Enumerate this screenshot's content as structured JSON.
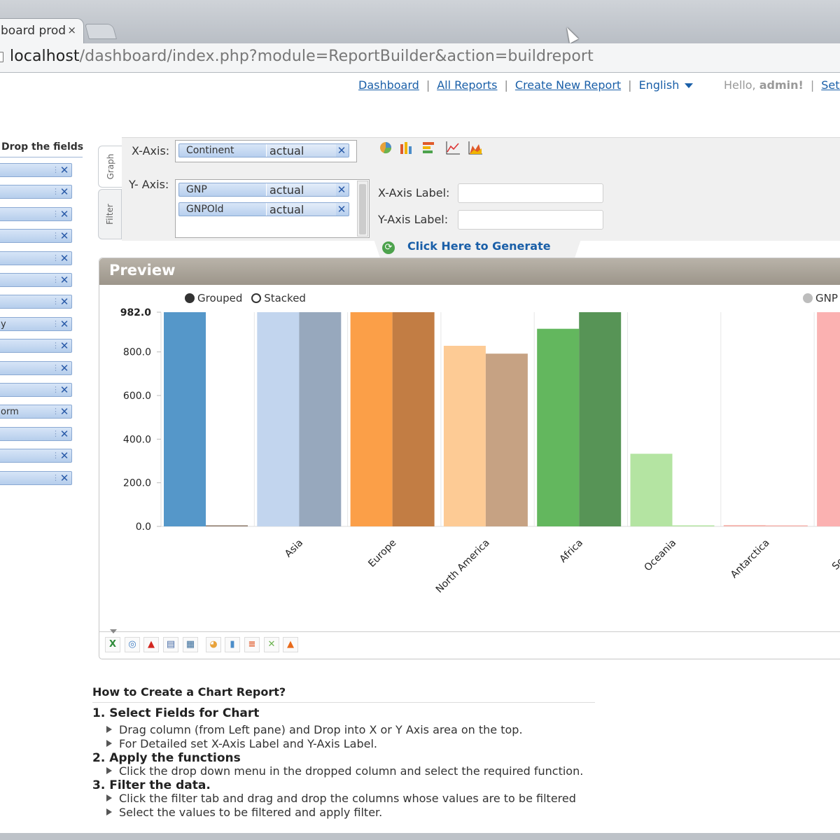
{
  "browser": {
    "tab_title": "board prod",
    "tab_close": "×",
    "url_host": "localhost",
    "url_path": "/dashboard/index.php?module=ReportBuilder&action=buildreport"
  },
  "nav": {
    "links": [
      "Dashboard",
      "All Reports",
      "Create New Report"
    ],
    "separator": "|",
    "language": "English",
    "hello_prefix": "Hello,",
    "user": "admin!",
    "settings": "Sett"
  },
  "fields_pane": {
    "title": "Drop the fields",
    "items": [
      "",
      "",
      "",
      "",
      "",
      "",
      "",
      "y",
      "",
      "",
      "",
      "orm",
      "",
      "",
      ""
    ],
    "remove_glyph": "✕"
  },
  "vertical_tabs": [
    "Graph",
    "Filter"
  ],
  "axes": {
    "x_label": "X-Axis:",
    "y_label": "Y- Axis:",
    "x_fields": [
      {
        "name": "Continent",
        "function": "actual"
      }
    ],
    "y_fields": [
      {
        "name": "GNP",
        "function": "actual"
      },
      {
        "name": "GNPOld",
        "function": "actual"
      }
    ],
    "remove_glyph": "✕"
  },
  "labels": {
    "x_axis_label": "X-Axis Label:",
    "y_axis_label": "Y-Axis Label:",
    "x_axis_value": "",
    "y_axis_value": ""
  },
  "chart_type_icons": [
    "pie-chart-icon",
    "column-chart-icon",
    "bar-chart-icon",
    "line-chart-icon",
    "area-chart-icon"
  ],
  "generate": {
    "label": "Click Here to Generate",
    "icon": "refresh-icon"
  },
  "preview": {
    "title": "Preview",
    "mode_grouped": "Grouped",
    "mode_stacked": "Stacked",
    "selected_mode": "Grouped",
    "legend_partial": "GNP"
  },
  "chart_data": {
    "type": "bar",
    "categories": [
      "",
      "Asia",
      "Europe",
      "North America",
      "Africa",
      "Oceania",
      "Antarctica",
      "South A"
    ],
    "series": [
      {
        "name": "",
        "values": [
          982,
          982,
          982,
          828,
          906,
          333,
          6,
          982
        ]
      },
      {
        "name": "",
        "values": [
          4,
          982,
          982,
          792,
          982,
          0,
          0,
          null
        ]
      }
    ],
    "colors": [
      [
        "#5597c9",
        "#8c7868"
      ],
      [
        "#c2d5ee",
        "#97a8bd"
      ],
      [
        "#fb9f48",
        "#c27d44"
      ],
      [
        "#fdcb95",
        "#c6a283"
      ],
      [
        "#63b75e",
        "#579456"
      ],
      [
        "#b4e4a2",
        "#b4e4a2"
      ],
      [
        "#f6b4ae",
        "#f6b4ae"
      ],
      [
        "#fbb1b1",
        "#fbb1b1"
      ]
    ],
    "y_ticks": [
      "982.0",
      "800.0",
      "600.0",
      "400.0",
      "200.0",
      "0.0"
    ],
    "y_tick_values": [
      982,
      800,
      600,
      400,
      200,
      0
    ],
    "ylim": [
      0,
      982
    ],
    "grid": true
  },
  "export_tools": [
    "excel-icon",
    "web-icon",
    "pdf-icon",
    "print-icon",
    "image-icon",
    "pie-chart-icon",
    "column-chart-icon",
    "bar-chart-icon",
    "line-chart-icon",
    "area-chart-icon"
  ],
  "help": {
    "title": "How to Create a Chart Report?",
    "sections": [
      {
        "heading": "1. Select Fields for Chart",
        "bullets": [
          "Drag column (from Left pane) and Drop into X or Y Axis area on the top.",
          "For Detailed set X-Axis Label and Y-Axis Label."
        ]
      },
      {
        "heading": "2. Apply the functions",
        "bullets": [
          "Click the drop down menu in the dropped column and select the required function."
        ]
      },
      {
        "heading": "3. Filter the data.",
        "bullets": [
          "Click the filter tab and drag and drop the columns whose values are to be filtered",
          "Select the values to be filtered and apply filter."
        ]
      }
    ]
  }
}
